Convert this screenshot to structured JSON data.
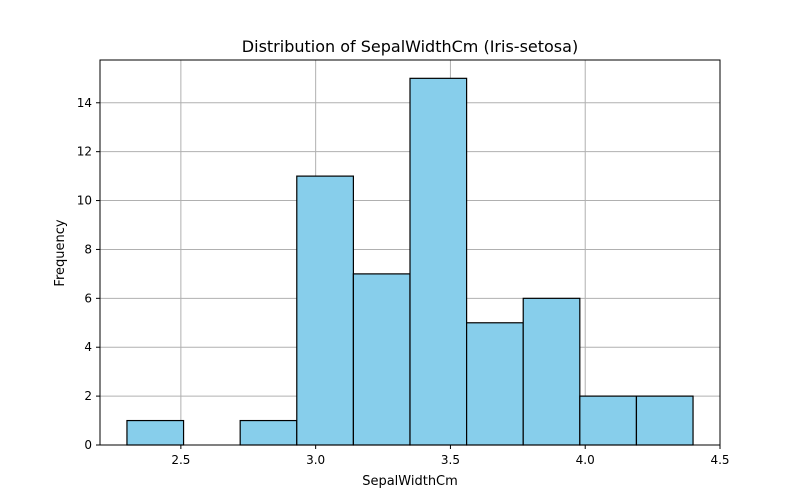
{
  "chart_data": {
    "type": "bar",
    "title": "Distribution of SepalWidthCm (Iris-setosa)",
    "xlabel": "SepalWidthCm",
    "ylabel": "Frequency",
    "bins": [
      {
        "start": 2.3,
        "end": 2.51,
        "count": 1
      },
      {
        "start": 2.51,
        "end": 2.72,
        "count": 0
      },
      {
        "start": 2.72,
        "end": 2.93,
        "count": 1
      },
      {
        "start": 2.93,
        "end": 3.14,
        "count": 11
      },
      {
        "start": 3.14,
        "end": 3.35,
        "count": 7
      },
      {
        "start": 3.35,
        "end": 3.56,
        "count": 15
      },
      {
        "start": 3.56,
        "end": 3.77,
        "count": 5
      },
      {
        "start": 3.77,
        "end": 3.98,
        "count": 6
      },
      {
        "start": 3.98,
        "end": 4.19,
        "count": 2
      },
      {
        "start": 4.19,
        "end": 4.4,
        "count": 2
      }
    ],
    "xlim": [
      2.2,
      4.5
    ],
    "ylim": [
      0,
      15.75
    ],
    "xticks": [
      "2.5",
      "3.0",
      "3.5",
      "4.0",
      "4.5"
    ],
    "yticks": [
      "0",
      "2",
      "4",
      "6",
      "8",
      "10",
      "12",
      "14"
    ],
    "grid": true,
    "bar_color": "#87ceeb",
    "edge_color": "#000000",
    "grid_color": "#b0b0b0"
  }
}
